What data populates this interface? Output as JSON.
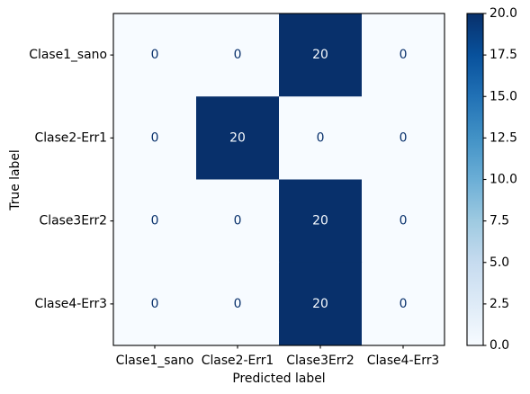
{
  "chart_data": {
    "type": "heatmap",
    "x_categories": [
      "Clase1_sano",
      "Clase2-Err1",
      "Clase3Err2",
      "Clase4-Err3"
    ],
    "y_categories": [
      "Clase1_sano",
      "Clase2-Err1",
      "Clase3Err2",
      "Clase4-Err3"
    ],
    "values": [
      [
        0,
        0,
        20,
        0
      ],
      [
        0,
        20,
        0,
        0
      ],
      [
        0,
        0,
        20,
        0
      ],
      [
        0,
        0,
        20,
        0
      ]
    ],
    "xlabel": "Predicted label",
    "ylabel": "True label",
    "colorbar": {
      "range": [
        0,
        20
      ],
      "tick_labels": [
        "0.0",
        "2.5",
        "5.0",
        "7.5",
        "10.0",
        "12.5",
        "15.0",
        "17.5",
        "20.0"
      ]
    },
    "colormap": "Blues",
    "colormap_stops": [
      "#f7fbff",
      "#deebf7",
      "#c6dbef",
      "#9ecae1",
      "#6baed6",
      "#4292c6",
      "#2171b5",
      "#08519c",
      "#08306b"
    ],
    "text_color_low_cells": "#08306b",
    "text_color_high_cells": "#f7fbff",
    "grid": false
  }
}
